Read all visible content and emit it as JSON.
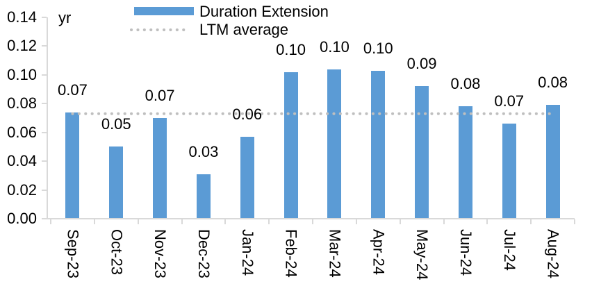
{
  "unit_label": "yr",
  "legend": {
    "items": [
      {
        "label": "Duration Extension",
        "swatch": "bar",
        "color": "#5b9bd5"
      },
      {
        "label": "LTM average",
        "swatch": "dotted-line",
        "color": "#bfbfbf"
      }
    ]
  },
  "chart_data": {
    "type": "bar",
    "title": "",
    "xlabel": "",
    "ylabel": "yr",
    "ylim": [
      0,
      0.14
    ],
    "ytick_labels": [
      "0.14",
      "0.12",
      "0.10",
      "0.08",
      "0.06",
      "0.04",
      "0.02",
      "0.00"
    ],
    "yticks": [
      0.14,
      0.12,
      0.1,
      0.08,
      0.06,
      0.04,
      0.02,
      0.0
    ],
    "grid": false,
    "legend_position": "top",
    "axis_color": "#d9d9d9",
    "text_color": "#000000",
    "categories": [
      "Sep-23",
      "Oct-23",
      "Nov-23",
      "Dec-23",
      "Jan-24",
      "Feb-24",
      "Mar-24",
      "Apr-24",
      "May-24",
      "Jun-24",
      "Jul-24",
      "Aug-24"
    ],
    "series": [
      {
        "name": "Duration Extension",
        "type": "bar",
        "color": "#5b9bd5",
        "values": [
          0.074,
          0.05,
          0.07,
          0.031,
          0.057,
          0.102,
          0.104,
          0.103,
          0.092,
          0.078,
          0.066,
          0.079
        ],
        "data_labels": [
          "0.07",
          "0.05",
          "0.07",
          "0.03",
          "0.06",
          "0.10",
          "0.10",
          "0.10",
          "0.09",
          "0.08",
          "0.07",
          "0.08"
        ]
      },
      {
        "name": "LTM average",
        "type": "horizontal-dotted-line",
        "color": "#bfbfbf",
        "value": 0.073
      }
    ]
  }
}
